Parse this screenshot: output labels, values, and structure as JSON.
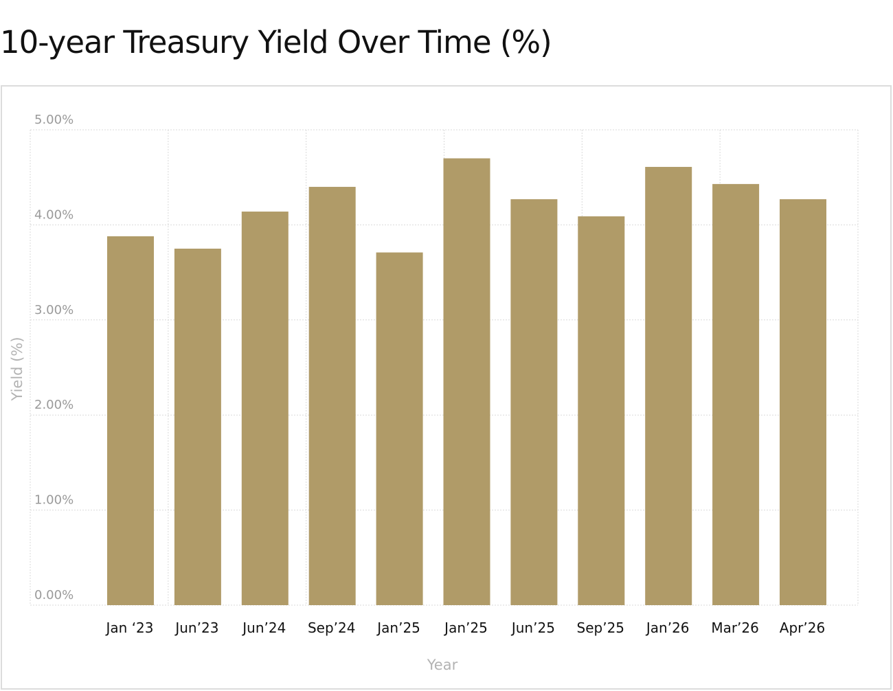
{
  "chart_data": {
    "type": "bar",
    "title": "10-year Treasury Yield Over Time (%)",
    "xlabel": "Year",
    "ylabel": "Yield (%)",
    "categories": [
      "Jan ‘23",
      "Jun’23",
      "Jun’24",
      "Sep’24",
      "Jan’25",
      "Jan’25",
      "Jun’25",
      "Sep’25",
      "Jan’26",
      "Mar’26",
      "Apr’26"
    ],
    "values": [
      3.88,
      3.75,
      4.14,
      4.4,
      3.71,
      4.7,
      4.27,
      4.09,
      4.61,
      4.43,
      4.27
    ],
    "yticks": [
      0,
      1,
      2,
      3,
      4,
      5
    ],
    "ytick_labels": [
      "0.00%",
      "1.00%",
      "2.00%",
      "3.00%",
      "4.00%",
      "5.00%"
    ],
    "ylim": [
      0,
      5
    ],
    "grid": true,
    "bar_color": "#b09b68"
  }
}
